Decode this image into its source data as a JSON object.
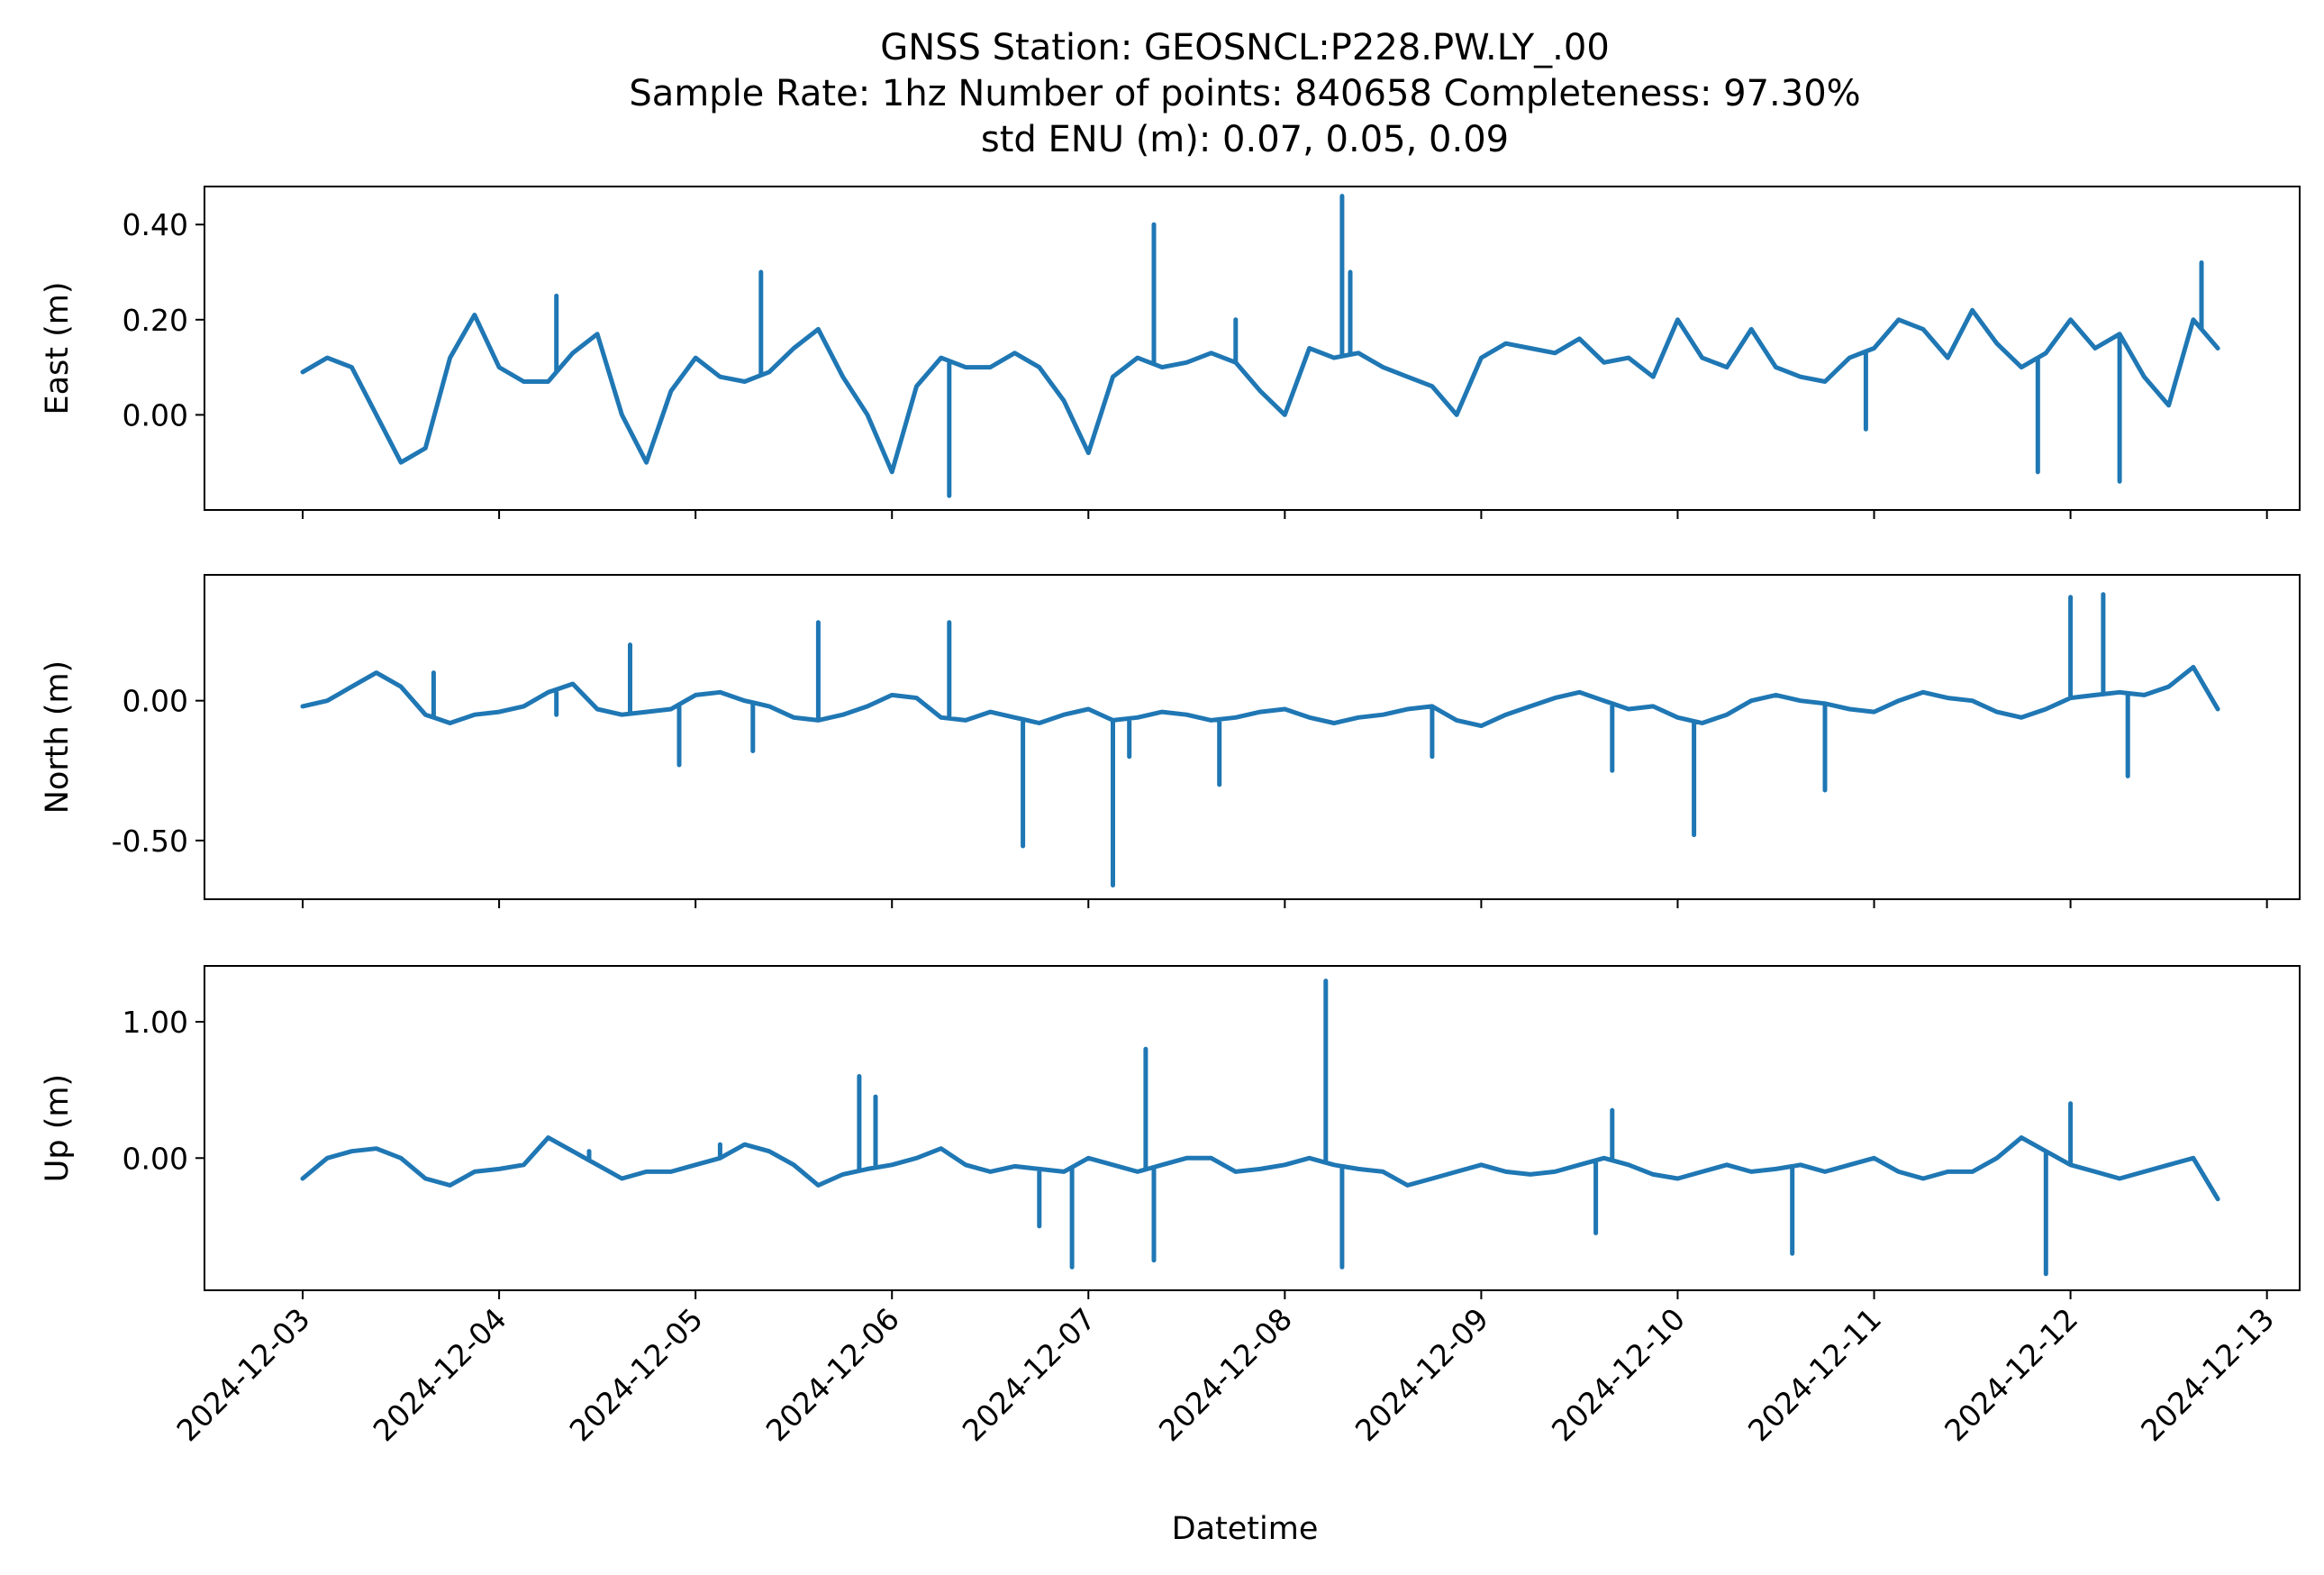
{
  "chart_data": {
    "type": "line",
    "title": [
      "GNSS Station: GEOSNCL:P228.PW.LY_.00",
      "Sample Rate: 1hz   Number of points: 840658    Completeness:  97.30%",
      "std ENU (m):  0.07, 0.05, 0.09"
    ],
    "xlabel": "Datetime",
    "x_ticks": [
      "2024-12-03",
      "2024-12-04",
      "2024-12-05",
      "2024-12-06",
      "2024-12-07",
      "2024-12-08",
      "2024-12-09",
      "2024-12-10",
      "2024-12-11",
      "2024-12-12",
      "2024-12-13"
    ],
    "xlim": [
      "2024-12-02T12:00",
      "2024-12-13T04:00"
    ],
    "x_data_range": [
      "2024-12-03T00:00",
      "2024-12-12T18:00"
    ],
    "line_color": "#1f77b4",
    "grid": false,
    "panels": [
      {
        "ylabel": "East (m)",
        "ylim": [
          -0.2,
          0.48
        ],
        "y_ticks": [
          0.4,
          0.2,
          0.0
        ],
        "y_tick_labels": [
          "0.40",
          "0.20",
          "0.00"
        ],
        "series": {
          "x_hours": [
            0,
            3,
            6,
            9,
            12,
            15,
            18,
            21,
            24,
            27,
            30,
            33,
            36,
            39,
            42,
            45,
            48,
            51,
            54,
            57,
            60,
            63,
            66,
            69,
            72,
            75,
            78,
            81,
            84,
            87,
            90,
            93,
            96,
            99,
            102,
            105,
            108,
            111,
            114,
            117,
            120,
            123,
            126,
            129,
            132,
            135,
            138,
            141,
            144,
            147,
            150,
            153,
            156,
            159,
            162,
            165,
            168,
            171,
            174,
            177,
            180,
            183,
            186,
            189,
            192,
            195,
            198,
            201,
            204,
            207,
            210,
            213,
            216,
            219,
            222,
            225,
            228,
            231,
            234
          ],
          "y": [
            0.09,
            0.12,
            0.1,
            0.0,
            -0.1,
            -0.07,
            0.12,
            0.21,
            0.1,
            0.07,
            0.07,
            0.13,
            0.17,
            0.0,
            -0.1,
            0.05,
            0.12,
            0.08,
            0.07,
            0.09,
            0.14,
            0.18,
            0.08,
            0.0,
            -0.12,
            0.06,
            0.12,
            0.1,
            0.1,
            0.13,
            0.1,
            0.03,
            -0.08,
            0.08,
            0.12,
            0.1,
            0.11,
            0.13,
            0.11,
            0.05,
            0.0,
            0.14,
            0.12,
            0.13,
            0.1,
            0.08,
            0.06,
            0.0,
            0.12,
            0.15,
            0.14,
            0.13,
            0.16,
            0.11,
            0.12,
            0.08,
            0.2,
            0.12,
            0.1,
            0.18,
            0.1,
            0.08,
            0.07,
            0.12,
            0.14,
            0.2,
            0.18,
            0.12,
            0.22,
            0.15,
            0.1,
            0.13,
            0.2,
            0.14,
            0.17,
            0.08,
            0.02,
            0.2,
            0.14
          ]
        },
        "spikes": [
          [
            31,
            0.25
          ],
          [
            56,
            0.3
          ],
          [
            79,
            -0.17
          ],
          [
            104,
            0.4
          ],
          [
            114,
            0.2
          ],
          [
            127,
            0.46
          ],
          [
            128,
            0.3
          ],
          [
            191,
            -0.03
          ],
          [
            212,
            -0.12
          ],
          [
            222,
            -0.14
          ],
          [
            232,
            0.32
          ]
        ]
      },
      {
        "ylabel": "North (m)",
        "ylim": [
          -0.71,
          0.45
        ],
        "y_ticks": [
          0.0,
          -0.5
        ],
        "y_tick_labels": [
          "0.00",
          "-0.50"
        ],
        "series": {
          "x_hours": [
            0,
            3,
            6,
            9,
            12,
            15,
            18,
            21,
            24,
            27,
            30,
            33,
            36,
            39,
            42,
            45,
            48,
            51,
            54,
            57,
            60,
            63,
            66,
            69,
            72,
            75,
            78,
            81,
            84,
            87,
            90,
            93,
            96,
            99,
            102,
            105,
            108,
            111,
            114,
            117,
            120,
            123,
            126,
            129,
            132,
            135,
            138,
            141,
            144,
            147,
            150,
            153,
            156,
            159,
            162,
            165,
            168,
            171,
            174,
            177,
            180,
            183,
            186,
            189,
            192,
            195,
            198,
            201,
            204,
            207,
            210,
            213,
            216,
            219,
            222,
            225,
            228,
            231,
            234
          ],
          "y": [
            -0.02,
            0.0,
            0.05,
            0.1,
            0.05,
            -0.05,
            -0.08,
            -0.05,
            -0.04,
            -0.02,
            0.03,
            0.06,
            -0.03,
            -0.05,
            -0.04,
            -0.03,
            0.02,
            0.03,
            0.0,
            -0.02,
            -0.06,
            -0.07,
            -0.05,
            -0.02,
            0.02,
            0.01,
            -0.06,
            -0.07,
            -0.04,
            -0.06,
            -0.08,
            -0.05,
            -0.03,
            -0.07,
            -0.06,
            -0.04,
            -0.05,
            -0.07,
            -0.06,
            -0.04,
            -0.03,
            -0.06,
            -0.08,
            -0.06,
            -0.05,
            -0.03,
            -0.02,
            -0.07,
            -0.09,
            -0.05,
            -0.02,
            0.01,
            0.03,
            0.0,
            -0.03,
            -0.02,
            -0.06,
            -0.08,
            -0.05,
            0.0,
            0.02,
            0.0,
            -0.01,
            -0.03,
            -0.04,
            0.0,
            0.03,
            0.01,
            0.0,
            -0.04,
            -0.06,
            -0.03,
            0.01,
            0.02,
            0.03,
            0.02,
            0.05,
            0.12,
            -0.03
          ]
        },
        "spikes": [
          [
            16,
            0.1
          ],
          [
            31,
            -0.05
          ],
          [
            40,
            0.2
          ],
          [
            46,
            -0.23
          ],
          [
            55,
            -0.18
          ],
          [
            63,
            0.28
          ],
          [
            79,
            0.28
          ],
          [
            88,
            -0.52
          ],
          [
            99,
            -0.66
          ],
          [
            101,
            -0.2
          ],
          [
            112,
            -0.3
          ],
          [
            138,
            -0.2
          ],
          [
            160,
            -0.25
          ],
          [
            170,
            -0.48
          ],
          [
            186,
            -0.32
          ],
          [
            216,
            0.37
          ],
          [
            220,
            0.38
          ],
          [
            223,
            -0.27
          ]
        ]
      },
      {
        "ylabel": "Up (m)",
        "ylim": [
          -0.97,
          1.41
        ],
        "y_ticks": [
          1.0,
          0.0
        ],
        "y_tick_labels": [
          "1.00",
          "0.00"
        ],
        "series": {
          "x_hours": [
            0,
            3,
            6,
            9,
            12,
            15,
            18,
            21,
            24,
            27,
            30,
            33,
            36,
            39,
            42,
            45,
            48,
            51,
            54,
            57,
            60,
            63,
            66,
            69,
            72,
            75,
            78,
            81,
            84,
            87,
            90,
            93,
            96,
            99,
            102,
            105,
            108,
            111,
            114,
            117,
            120,
            123,
            126,
            129,
            132,
            135,
            138,
            141,
            144,
            147,
            150,
            153,
            156,
            159,
            162,
            165,
            168,
            171,
            174,
            177,
            180,
            183,
            186,
            189,
            192,
            195,
            198,
            201,
            204,
            207,
            210,
            213,
            216,
            219,
            222,
            225,
            228,
            231,
            234
          ],
          "y": [
            -0.15,
            0.0,
            0.05,
            0.07,
            0.0,
            -0.15,
            -0.2,
            -0.1,
            -0.08,
            -0.05,
            0.15,
            0.05,
            -0.05,
            -0.15,
            -0.1,
            -0.1,
            -0.05,
            0.0,
            0.1,
            0.05,
            -0.05,
            -0.2,
            -0.12,
            -0.08,
            -0.05,
            0.0,
            0.07,
            -0.05,
            -0.1,
            -0.06,
            -0.08,
            -0.1,
            0.0,
            -0.05,
            -0.1,
            -0.05,
            0.0,
            0.0,
            -0.1,
            -0.08,
            -0.05,
            0.0,
            -0.05,
            -0.08,
            -0.1,
            -0.2,
            -0.15,
            -0.1,
            -0.05,
            -0.1,
            -0.12,
            -0.1,
            -0.05,
            0.0,
            -0.05,
            -0.12,
            -0.15,
            -0.1,
            -0.05,
            -0.1,
            -0.08,
            -0.05,
            -0.1,
            -0.05,
            0.0,
            -0.1,
            -0.15,
            -0.1,
            -0.1,
            0.0,
            0.15,
            0.05,
            -0.05,
            -0.1,
            -0.15,
            -0.1,
            -0.05,
            0.0,
            -0.3
          ]
        },
        "spikes": [
          [
            35,
            0.05
          ],
          [
            51,
            0.1
          ],
          [
            68,
            0.6
          ],
          [
            70,
            0.45
          ],
          [
            90,
            -0.5
          ],
          [
            94,
            -0.8
          ],
          [
            103,
            0.8
          ],
          [
            104,
            -0.75
          ],
          [
            125,
            1.3
          ],
          [
            127,
            -0.8
          ],
          [
            158,
            -0.55
          ],
          [
            160,
            0.35
          ],
          [
            182,
            -0.7
          ],
          [
            213,
            -0.85
          ],
          [
            216,
            0.4
          ]
        ]
      }
    ]
  }
}
